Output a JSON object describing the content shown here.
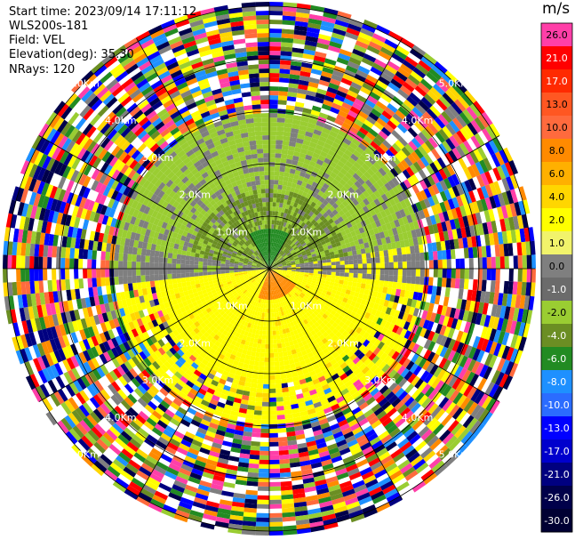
{
  "header": {
    "start_time": "Start time: 2023/09/14 17:11:12",
    "instrument": "WLS200s-181",
    "field": "Field: VEL",
    "elevation": "Elevation(deg): 35.30",
    "nrays": "NRays: 120"
  },
  "colorbar": {
    "unit": "m/s",
    "levels": [
      {
        "label": "26.0",
        "color": "#ff3fa8"
      },
      {
        "label": "21.0",
        "color": "#ff0000"
      },
      {
        "label": "17.0",
        "color": "#ff2a00"
      },
      {
        "label": "13.0",
        "color": "#ff5722"
      },
      {
        "label": "10.0",
        "color": "#ff6a3d"
      },
      {
        "label": "8.0",
        "color": "#ff8a00"
      },
      {
        "label": "6.0",
        "color": "#ffb000"
      },
      {
        "label": "4.0",
        "color": "#ffd600"
      },
      {
        "label": "2.0",
        "color": "#ffff00"
      },
      {
        "label": "1.0",
        "color": "#f1f36b"
      },
      {
        "label": "0.0",
        "color": "#7f7f7f"
      },
      {
        "label": "-1.0",
        "color": "#6b6b6b"
      },
      {
        "label": "-2.0",
        "color": "#9acd32"
      },
      {
        "label": "-4.0",
        "color": "#6b8e23"
      },
      {
        "label": "-6.0",
        "color": "#228b22"
      },
      {
        "label": "-8.0",
        "color": "#1e90ff"
      },
      {
        "label": "-10.0",
        "color": "#2b6cff"
      },
      {
        "label": "-13.0",
        "color": "#0000ff"
      },
      {
        "label": "-17.0",
        "color": "#0000cd"
      },
      {
        "label": "-21.0",
        "color": "#000080"
      },
      {
        "label": "-26.0",
        "color": "#00004a"
      },
      {
        "label": "-30.0",
        "color": "#000033"
      }
    ]
  },
  "range_rings": [
    {
      "label": "1.0Km"
    },
    {
      "label": "2.0Km"
    },
    {
      "label": "3.0Km"
    },
    {
      "label": "4.0Km"
    },
    {
      "label": "5.0Km"
    }
  ],
  "chart_data": {
    "type": "heatmap",
    "projection": "polar",
    "field": "VEL",
    "unit": "m/s",
    "rays": 120
  }
}
